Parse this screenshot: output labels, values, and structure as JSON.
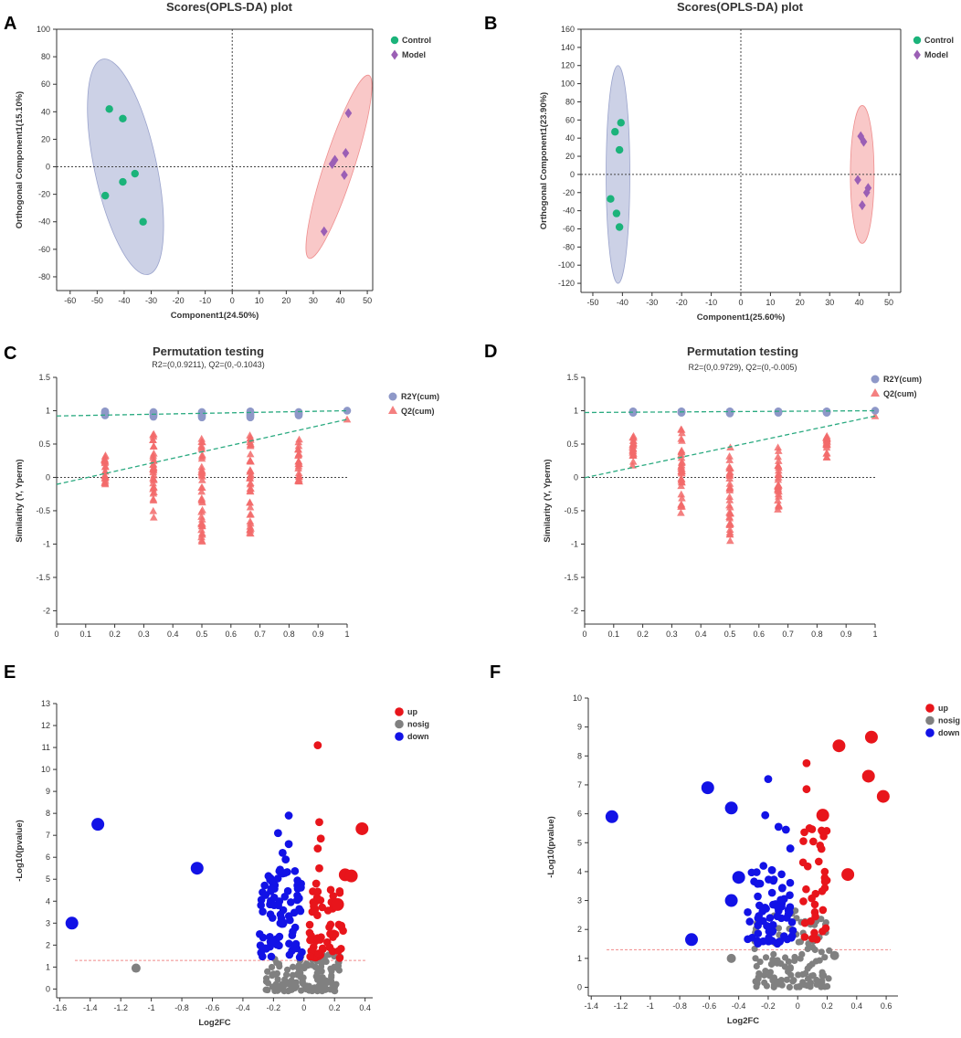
{
  "colors": {
    "control": "#1bb37a",
    "model": "#9b5fb5",
    "control_ellipse": "#b7bedb",
    "model_ellipse": "#f6b1b1",
    "r2y": "#8e98c8",
    "q2": "#f26a6a",
    "fit_line": "#2aaa80",
    "up": "#e8151b",
    "nosig": "#808080",
    "down": "#1212e6"
  },
  "chart_data": [
    {
      "panel": "A",
      "type": "scatter",
      "title": "Scores(OPLS-DA) plot",
      "xlabel": "Component1(24.50%)",
      "ylabel": "Orthogonal Component1(15.10%)",
      "xlim": [
        -65,
        52
      ],
      "ylim": [
        -90,
        100
      ],
      "xticks": [
        -60,
        -50,
        -40,
        -30,
        -20,
        -10,
        0,
        10,
        20,
        30,
        40,
        50
      ],
      "yticks": [
        -80,
        -60,
        -40,
        -20,
        0,
        20,
        40,
        60,
        80,
        100
      ],
      "legend": [
        "Control",
        "Model"
      ],
      "ellipses": [
        {
          "group": "Control",
          "cx": -39.5,
          "cy": 0,
          "rx": 11.5,
          "ry": 80,
          "tilt_deg": -12
        },
        {
          "group": "Model",
          "cx": 39.5,
          "cy": 0,
          "rx": 5.5,
          "ry": 70,
          "tilt_deg": 18
        }
      ],
      "series": [
        {
          "name": "Control",
          "marker": "circle",
          "points": [
            [
              -45.5,
              42
            ],
            [
              -40.5,
              35
            ],
            [
              -47,
              -21
            ],
            [
              -40.5,
              -11
            ],
            [
              -36,
              -5
            ],
            [
              -33,
              -40
            ]
          ]
        },
        {
          "name": "Model",
          "marker": "diamond",
          "points": [
            [
              43,
              39
            ],
            [
              37,
              2
            ],
            [
              38,
              5
            ],
            [
              42,
              10
            ],
            [
              41.5,
              -6
            ],
            [
              34,
              -47
            ]
          ]
        }
      ]
    },
    {
      "panel": "B",
      "type": "scatter",
      "title": "Scores(OPLS-DA) plot",
      "xlabel": "Component1(25.60%)",
      "ylabel": "Orthogonal Component1(23.90%)",
      "xlim": [
        -54,
        54
      ],
      "ylim": [
        -130,
        160
      ],
      "xticks": [
        -50,
        -40,
        -30,
        -20,
        -10,
        0,
        10,
        20,
        30,
        40,
        50
      ],
      "yticks": [
        -120,
        -100,
        -80,
        -60,
        -40,
        -20,
        0,
        20,
        40,
        60,
        80,
        100,
        120,
        140,
        160
      ],
      "legend": [
        "Control",
        "Model"
      ],
      "ellipses": [
        {
          "group": "Control",
          "cx": -41.5,
          "cy": 0,
          "rx": 4,
          "ry": 120,
          "tilt_deg": 0
        },
        {
          "group": "Model",
          "cx": 41,
          "cy": 0,
          "rx": 4,
          "ry": 76,
          "tilt_deg": 0
        }
      ],
      "series": [
        {
          "name": "Control",
          "marker": "circle",
          "points": [
            [
              -40.5,
              57
            ],
            [
              -42.5,
              47
            ],
            [
              -41,
              27
            ],
            [
              -44,
              -27
            ],
            [
              -42,
              -43
            ],
            [
              -41,
              -58
            ]
          ]
        },
        {
          "name": "Model",
          "marker": "diamond",
          "points": [
            [
              40.5,
              42
            ],
            [
              41.5,
              36
            ],
            [
              39.5,
              -6
            ],
            [
              43,
              -15
            ],
            [
              42.5,
              -20
            ],
            [
              41,
              -34
            ]
          ]
        }
      ]
    },
    {
      "panel": "C",
      "type": "scatter",
      "title": "Permutation testing",
      "subtitle": "R2=(0,0.9211), Q2=(0,-0.1043)",
      "xlabel": "",
      "ylabel": "Similarity (Y, Yperm)",
      "xlim": [
        0,
        1
      ],
      "ylim": [
        -2.2,
        1.5
      ],
      "xticks": [
        0,
        0.1,
        0.2,
        0.3,
        0.4,
        0.5,
        0.6,
        0.7,
        0.8,
        0.9,
        1
      ],
      "yticks": [
        -2,
        -1.5,
        -1,
        -0.5,
        0,
        0.5,
        1,
        1.5
      ],
      "legend": [
        "R2Y(cum)",
        "Q2(cum)"
      ],
      "r2y_intercept": 0.9211,
      "q2_intercept": -0.1043,
      "r2y_final": 1.0,
      "q2_final": 0.87,
      "q2_columns": [
        {
          "x": 0.1667,
          "min": -0.1,
          "max": 0.33
        },
        {
          "x": 0.3333,
          "min": -0.6,
          "max": 0.65
        },
        {
          "x": 0.5,
          "min": -0.96,
          "max": 0.58
        },
        {
          "x": 0.6667,
          "min": -0.84,
          "max": 0.63
        },
        {
          "x": 0.8333,
          "min": -0.06,
          "max": 0.57
        }
      ],
      "r2y_columns": [
        {
          "x": 0.1667,
          "min": 0.93,
          "max": 0.99
        },
        {
          "x": 0.3333,
          "min": 0.91,
          "max": 0.98
        },
        {
          "x": 0.5,
          "min": 0.9,
          "max": 0.98
        },
        {
          "x": 0.6667,
          "min": 0.9,
          "max": 0.99
        },
        {
          "x": 0.8333,
          "min": 0.93,
          "max": 0.98
        }
      ]
    },
    {
      "panel": "D",
      "type": "scatter",
      "title": "Permutation testing",
      "subtitle": "R2=(0,0.9729), Q2=(0,-0.005)",
      "xlabel": "",
      "ylabel": "Similarity (Y, Yperm)",
      "xlim": [
        0,
        1
      ],
      "ylim": [
        -2.2,
        1.5
      ],
      "xticks": [
        0,
        0.1,
        0.2,
        0.3,
        0.4,
        0.5,
        0.6,
        0.7,
        0.8,
        0.9,
        1
      ],
      "yticks": [
        -2,
        -1.5,
        -1,
        -0.5,
        0,
        0.5,
        1,
        1.5
      ],
      "legend": [
        "R2Y(cum)",
        "Q2(cum)"
      ],
      "r2y_intercept": 0.9729,
      "q2_intercept": -0.005,
      "r2y_final": 1.0,
      "q2_final": 0.92,
      "q2_columns": [
        {
          "x": 0.1667,
          "min": 0.18,
          "max": 0.62
        },
        {
          "x": 0.3333,
          "min": -0.53,
          "max": 0.72
        },
        {
          "x": 0.5,
          "min": -0.95,
          "max": 0.45
        },
        {
          "x": 0.6667,
          "min": -0.48,
          "max": 0.45
        },
        {
          "x": 0.8333,
          "min": 0.3,
          "max": 0.62
        }
      ],
      "r2y_columns": [
        {
          "x": 0.1667,
          "min": 0.97,
          "max": 0.99
        },
        {
          "x": 0.3333,
          "min": 0.97,
          "max": 0.99
        },
        {
          "x": 0.5,
          "min": 0.96,
          "max": 0.99
        },
        {
          "x": 0.6667,
          "min": 0.97,
          "max": 0.99
        },
        {
          "x": 0.8333,
          "min": 0.97,
          "max": 0.99
        }
      ]
    },
    {
      "panel": "E",
      "type": "scatter",
      "title": "",
      "xlabel": "Log2FC",
      "ylabel": "-Log10(pvalue)",
      "xlim": [
        -1.62,
        0.45
      ],
      "ylim": [
        -0.4,
        13
      ],
      "xticks": [
        -1.6,
        -1.4,
        -1.2,
        -1,
        -0.8,
        -0.6,
        -0.4,
        -0.2,
        0,
        0.2,
        0.4
      ],
      "yticks": [
        0,
        1,
        2,
        3,
        4,
        5,
        6,
        7,
        8,
        9,
        10,
        11,
        12,
        13
      ],
      "legend": [
        "up",
        "nosig",
        "down"
      ],
      "threshold_y": 1.3,
      "large_points": {
        "up": [
          [
            0.38,
            7.3
          ],
          [
            0.27,
            5.2
          ],
          [
            0.31,
            5.15
          ],
          [
            0.22,
            3.85
          ]
        ],
        "nosig": [
          [
            -1.1,
            0.95
          ]
        ],
        "down": [
          [
            -1.35,
            7.5
          ],
          [
            -1.52,
            3.0
          ],
          [
            -0.7,
            5.5
          ]
        ]
      },
      "cluster": {
        "up": {
          "x": [
            0.03,
            0.26
          ],
          "y": [
            1.4,
            4.6
          ],
          "n": 55,
          "extra": [
            [
              0.09,
              11.1
            ],
            [
              0.1,
              7.6
            ],
            [
              0.11,
              6.85
            ],
            [
              0.09,
              6.4
            ],
            [
              0.1,
              5.5
            ],
            [
              0.08,
              4.8
            ]
          ]
        },
        "down": {
          "x": [
            -0.29,
            -0.01
          ],
          "y": [
            1.4,
            5.6
          ],
          "n": 85,
          "extra": [
            [
              -0.1,
              7.9
            ],
            [
              -0.17,
              7.1
            ],
            [
              -0.1,
              6.6
            ],
            [
              -0.14,
              6.2
            ],
            [
              -0.12,
              5.9
            ]
          ]
        },
        "nosig": {
          "x": [
            -0.25,
            0.24
          ],
          "y": [
            -0.1,
            1.6
          ],
          "n": 130,
          "extra": []
        }
      }
    },
    {
      "panel": "F",
      "type": "scatter",
      "title": "",
      "xlabel": "Log2FC",
      "ylabel": "-Log10(pvalue)",
      "xlim": [
        -1.42,
        0.68
      ],
      "ylim": [
        -0.3,
        10
      ],
      "xticks": [
        -1.4,
        -1.2,
        -1,
        -0.8,
        -0.6,
        -0.4,
        -0.2,
        0,
        0.2,
        0.4,
        0.6
      ],
      "yticks": [
        0,
        1,
        2,
        3,
        4,
        5,
        6,
        7,
        8,
        9,
        10
      ],
      "legend": [
        "up",
        "nosig",
        "down"
      ],
      "threshold_y": 1.3,
      "large_points": {
        "up": [
          [
            0.5,
            8.65
          ],
          [
            0.28,
            8.35
          ],
          [
            0.48,
            7.3
          ],
          [
            0.58,
            6.6
          ],
          [
            0.34,
            3.9
          ],
          [
            0.17,
            5.95
          ]
        ],
        "nosig": [
          [
            -0.45,
            1.0
          ],
          [
            0.25,
            1.1
          ]
        ],
        "down": [
          [
            -1.26,
            5.9
          ],
          [
            -0.61,
            6.9
          ],
          [
            -0.45,
            6.2
          ],
          [
            -0.72,
            1.65
          ],
          [
            -0.45,
            3.0
          ],
          [
            -0.4,
            3.8
          ]
        ]
      },
      "cluster": {
        "up": {
          "x": [
            0.03,
            0.2
          ],
          "y": [
            1.6,
            5.7
          ],
          "n": 35,
          "extra": [
            [
              0.06,
              7.75
            ],
            [
              0.06,
              6.85
            ],
            [
              0.08,
              5.5
            ]
          ]
        },
        "down": {
          "x": [
            -0.36,
            -0.03
          ],
          "y": [
            1.5,
            4.2
          ],
          "n": 70,
          "extra": [
            [
              -0.2,
              7.2
            ],
            [
              -0.22,
              5.95
            ],
            [
              -0.13,
              5.55
            ],
            [
              -0.08,
              5.45
            ],
            [
              -0.05,
              4.8
            ]
          ]
        },
        "nosig": {
          "x": [
            -0.3,
            0.22
          ],
          "y": [
            0.0,
            2.7
          ],
          "n": 120,
          "extra": []
        }
      }
    }
  ]
}
